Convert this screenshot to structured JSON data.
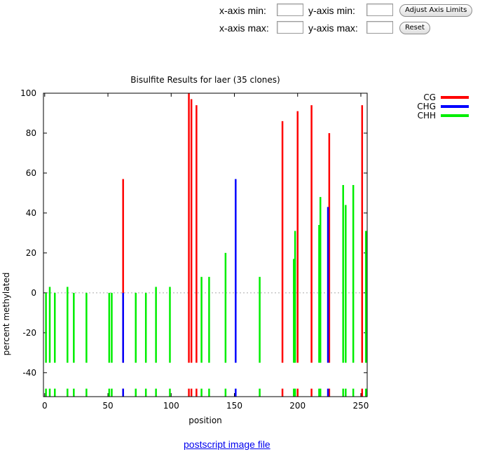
{
  "controls": {
    "xmin_label": "x-axis min:",
    "ymin_label": "y-axis min:",
    "xmax_label": "x-axis max:",
    "ymax_label": "y-axis max:",
    "xmin_value": "",
    "ymin_value": "",
    "xmax_value": "",
    "ymax_value": "",
    "adjust_label": "Adjust Axis Limits",
    "reset_label": "Reset"
  },
  "link": {
    "postscript_label": "postscript image file"
  },
  "chart_data": {
    "type": "bar",
    "title": "Bisulfite Results for laer (35 clones)",
    "xlabel": "position",
    "ylabel": "percent methylated",
    "xlim": [
      -1,
      255
    ],
    "ylim": [
      -52,
      100
    ],
    "xticks": [
      0,
      50,
      100,
      150,
      200,
      250
    ],
    "yticks": [
      -40,
      -20,
      0,
      20,
      40,
      60,
      80,
      100
    ],
    "zero_line": "dotted gray",
    "legend_position": "right, outside plot",
    "colors": {
      "CG": "#ff0000",
      "CHG": "#0000ff",
      "CHH": "#00ee00"
    },
    "site_track_y": [
      -52,
      -48
    ],
    "series": [
      {
        "name": "CG",
        "color": "#ff0000",
        "points": [
          {
            "x": 62,
            "y": 57
          },
          {
            "x": 114,
            "y": 100
          },
          {
            "x": 116,
            "y": 97
          },
          {
            "x": 120,
            "y": 94
          },
          {
            "x": 188,
            "y": 86
          },
          {
            "x": 200,
            "y": 91
          },
          {
            "x": 211,
            "y": 94
          },
          {
            "x": 225,
            "y": 80
          },
          {
            "x": 251,
            "y": 94
          }
        ]
      },
      {
        "name": "CHG",
        "color": "#0000ff",
        "points": [
          {
            "x": 62,
            "y": 0
          },
          {
            "x": 151,
            "y": 57
          },
          {
            "x": 224,
            "y": 43
          }
        ]
      },
      {
        "name": "CHH",
        "color": "#00ee00",
        "points": [
          {
            "x": 1,
            "y": 0
          },
          {
            "x": 4,
            "y": 3
          },
          {
            "x": 8,
            "y": 0
          },
          {
            "x": 18,
            "y": 3
          },
          {
            "x": 23,
            "y": 0
          },
          {
            "x": 33,
            "y": 0
          },
          {
            "x": 51,
            "y": 0
          },
          {
            "x": 53,
            "y": 0
          },
          {
            "x": 72,
            "y": 0
          },
          {
            "x": 80,
            "y": 0
          },
          {
            "x": 88,
            "y": 3
          },
          {
            "x": 99,
            "y": 3
          },
          {
            "x": 124,
            "y": 8
          },
          {
            "x": 130,
            "y": 8
          },
          {
            "x": 143,
            "y": 20
          },
          {
            "x": 170,
            "y": 8
          },
          {
            "x": 197,
            "y": 17
          },
          {
            "x": 198,
            "y": 31
          },
          {
            "x": 217,
            "y": 34
          },
          {
            "x": 218,
            "y": 48
          },
          {
            "x": 236,
            "y": 54
          },
          {
            "x": 238,
            "y": 44
          },
          {
            "x": 244,
            "y": 54
          },
          {
            "x": 254,
            "y": 31
          }
        ]
      }
    ]
  }
}
